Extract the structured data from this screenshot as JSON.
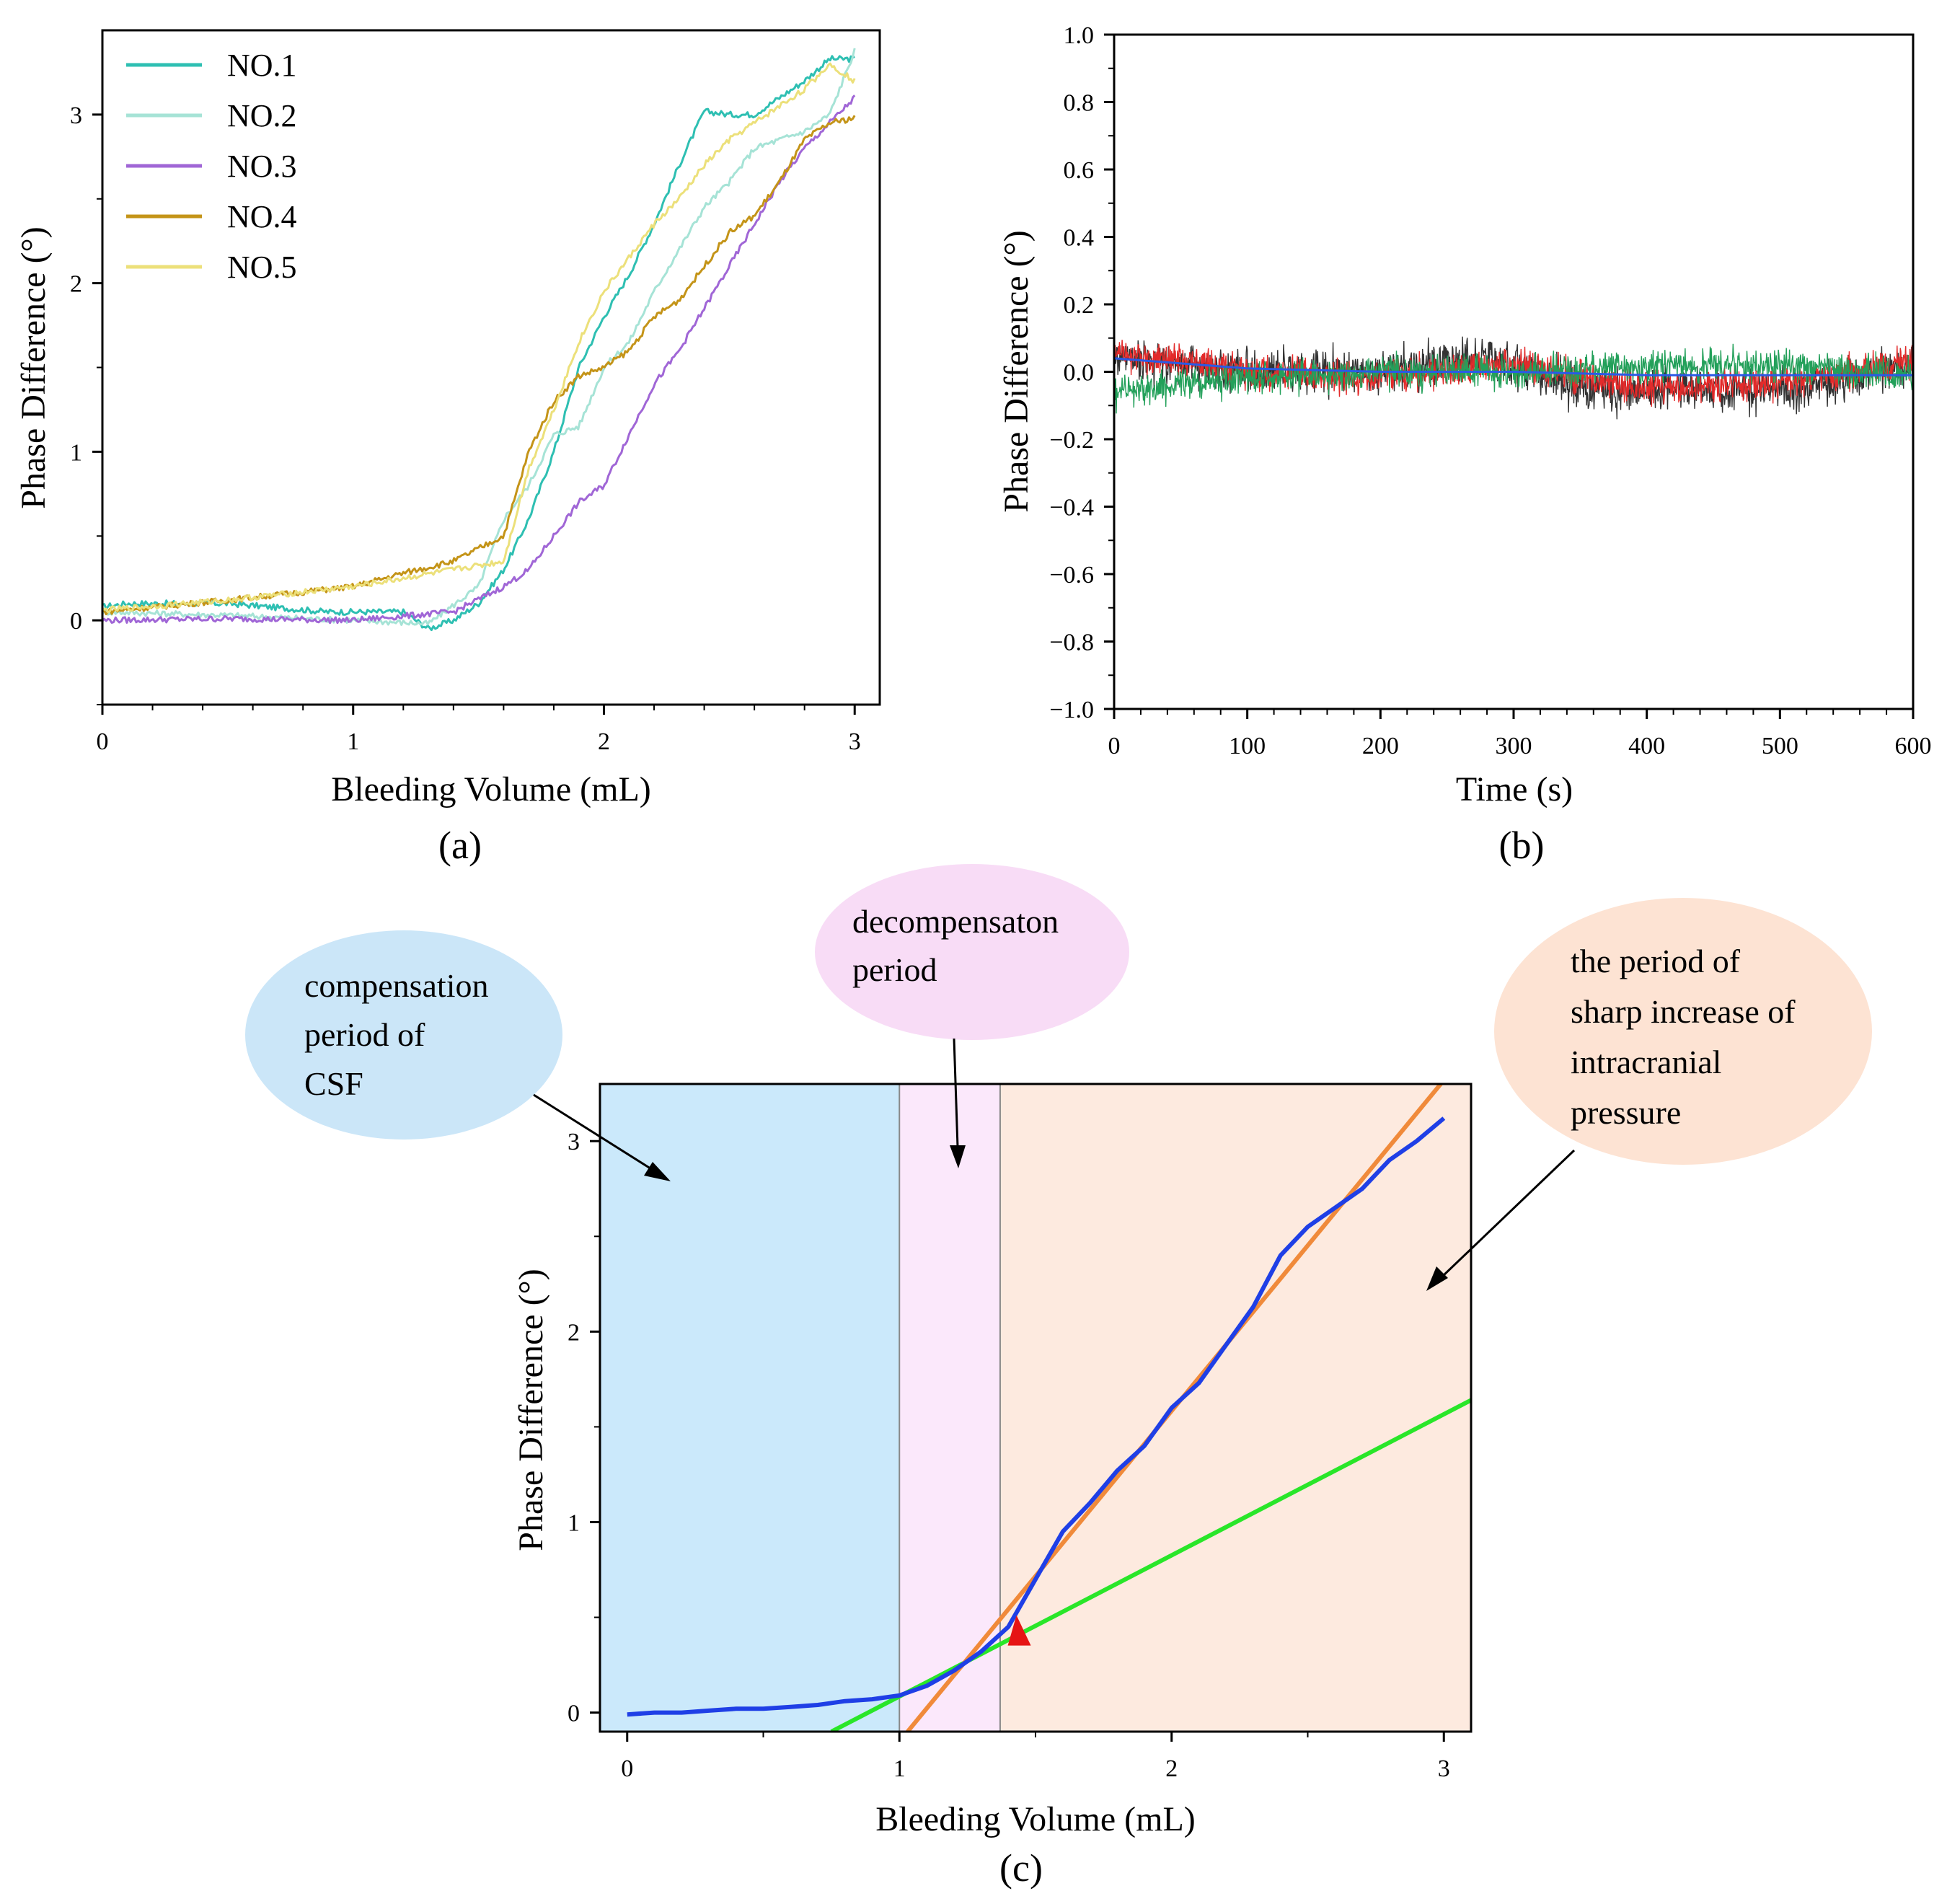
{
  "panels": {
    "a": {
      "label": "(a)"
    },
    "b": {
      "label": "(b)"
    },
    "c": {
      "label": "(c)"
    }
  },
  "colors": {
    "no1": "#2ebfb2",
    "no2": "#a6e3d6",
    "no3": "#a066d6",
    "no4": "#c49418",
    "no5": "#ece07a",
    "b_black": "#333333",
    "b_red": "#e32a2a",
    "b_green": "#23a05a",
    "b_blue": "#2a5ae6",
    "c_curve": "#1f3fe6",
    "c_fit_steep": "#f08a3a",
    "c_fit_shallow": "#29e629",
    "c_marker": "#e61414",
    "region_compensation": "#cbe9fb",
    "region_decompensation": "#fbe8fb",
    "region_sharp": "#fdeadf",
    "bubble_compensation": "#cbe6f8",
    "bubble_decompensation": "#f8dcf6",
    "bubble_sharp": "#fde3d3"
  },
  "chart_data": [
    {
      "id": "a",
      "type": "line",
      "xlabel": "Bleeding Volume (mL)",
      "ylabel": "Phase  Difference (°)",
      "xlim": [
        0,
        3.1
      ],
      "ylim": [
        -0.5,
        3.5
      ],
      "xticks": [
        0,
        1,
        2,
        3
      ],
      "yticks": [
        0,
        1,
        2,
        3
      ],
      "legend_position": "top-left",
      "grid": false,
      "series": [
        {
          "name": "NO.1",
          "color": "#2ebfb2",
          "x": [
            0,
            0.1,
            0.5,
            0.9,
            1.2,
            1.3,
            1.4,
            1.5,
            1.6,
            1.7,
            1.8,
            1.9,
            2.0,
            2.1,
            2.2,
            2.3,
            2.4,
            2.5,
            2.6,
            2.7,
            2.8,
            2.9,
            3.0
          ],
          "y": [
            0.08,
            0.1,
            0.1,
            0.05,
            0.05,
            -0.05,
            0.0,
            0.1,
            0.3,
            0.6,
            1.0,
            1.5,
            1.8,
            2.05,
            2.35,
            2.7,
            3.02,
            3.0,
            3.0,
            3.1,
            3.2,
            3.33,
            3.33
          ]
        },
        {
          "name": "NO.2",
          "color": "#a6e3d6",
          "x": [
            0,
            0.5,
            1.0,
            1.3,
            1.5,
            1.6,
            1.7,
            1.8,
            1.9,
            2.0,
            2.1,
            2.2,
            2.3,
            2.4,
            2.5,
            2.6,
            2.7,
            2.8,
            2.9,
            3.0
          ],
          "y": [
            0.05,
            0.03,
            0.0,
            -0.02,
            0.2,
            0.6,
            0.8,
            1.1,
            1.15,
            1.5,
            1.65,
            1.95,
            2.2,
            2.45,
            2.6,
            2.8,
            2.85,
            2.9,
            3.0,
            3.38
          ]
        },
        {
          "name": "NO.3",
          "color": "#a066d6",
          "x": [
            0,
            0.5,
            1.0,
            1.4,
            1.6,
            1.7,
            1.8,
            1.9,
            2.0,
            2.1,
            2.2,
            2.3,
            2.4,
            2.5,
            2.6,
            2.7,
            2.8,
            2.9,
            3.0
          ],
          "y": [
            0.0,
            0.01,
            0.0,
            0.05,
            0.2,
            0.3,
            0.5,
            0.7,
            0.8,
            1.1,
            1.4,
            1.6,
            1.85,
            2.1,
            2.35,
            2.6,
            2.8,
            2.95,
            3.1
          ]
        },
        {
          "name": "NO.4",
          "color": "#c49418",
          "x": [
            0,
            0.5,
            1.0,
            1.2,
            1.4,
            1.6,
            1.7,
            1.8,
            1.9,
            2.0,
            2.1,
            2.2,
            2.3,
            2.4,
            2.5,
            2.6,
            2.7,
            2.8,
            2.9,
            3.0
          ],
          "y": [
            0.05,
            0.12,
            0.2,
            0.28,
            0.35,
            0.5,
            1.0,
            1.3,
            1.45,
            1.5,
            1.6,
            1.8,
            1.9,
            2.1,
            2.3,
            2.4,
            2.6,
            2.85,
            2.95,
            2.98
          ]
        },
        {
          "name": "NO.5",
          "color": "#ece07a",
          "x": [
            0,
            0.5,
            1.0,
            1.4,
            1.6,
            1.7,
            1.8,
            1.9,
            2.0,
            2.1,
            2.2,
            2.3,
            2.4,
            2.5,
            2.6,
            2.7,
            2.8,
            2.9,
            3.0
          ],
          "y": [
            0.06,
            0.12,
            0.2,
            0.3,
            0.35,
            0.9,
            1.25,
            1.65,
            1.95,
            2.15,
            2.35,
            2.5,
            2.7,
            2.85,
            2.95,
            3.05,
            3.15,
            3.3,
            3.2
          ]
        }
      ]
    },
    {
      "id": "b",
      "type": "line",
      "xlabel": "Time (s)",
      "ylabel": "Phase  Difference (°)",
      "xlim": [
        0,
        600
      ],
      "ylim": [
        -1.0,
        1.0
      ],
      "xticks": [
        0,
        100,
        200,
        300,
        400,
        500,
        600
      ],
      "yticks": [
        -1.0,
        -0.8,
        -0.6,
        -0.4,
        -0.2,
        0.0,
        0.2,
        0.4,
        0.6,
        0.8,
        1.0
      ],
      "ytick_labels": [
        "−1.0",
        "−0.8",
        "−0.6",
        "−0.4",
        "−0.2",
        "0.0",
        "0.2",
        "0.4",
        "0.6",
        "0.8",
        "1.0"
      ],
      "grid": false,
      "series": [
        {
          "color": "#333333",
          "x": [
            0,
            100,
            200,
            280,
            350,
            450,
            520,
            600
          ],
          "y": [
            0.05,
            0.0,
            0.0,
            0.05,
            -0.05,
            -0.05,
            -0.05,
            0.02
          ],
          "noise": 0.06
        },
        {
          "color": "#e32a2a",
          "x": [
            0,
            100,
            200,
            300,
            400,
            500,
            600
          ],
          "y": [
            0.06,
            0.0,
            -0.02,
            0.02,
            -0.05,
            -0.03,
            0.03
          ],
          "noise": 0.045
        },
        {
          "color": "#23a05a",
          "x": [
            0,
            100,
            200,
            300,
            400,
            500,
            600
          ],
          "y": [
            -0.06,
            -0.02,
            0.0,
            0.0,
            0.02,
            0.02,
            -0.01
          ],
          "noise": 0.045
        },
        {
          "color": "#2a5ae6",
          "x": [
            0,
            100,
            200,
            300,
            400,
            500,
            600
          ],
          "y": [
            0.04,
            0.01,
            0.0,
            0.0,
            -0.01,
            -0.01,
            -0.01
          ],
          "noise": 0.0
        }
      ]
    },
    {
      "id": "c",
      "type": "line",
      "xlabel": "Bleeding Volume (mL)",
      "ylabel": "Phase  Difference (°)",
      "xlim": [
        -0.1,
        3.1
      ],
      "ylim": [
        -0.1,
        3.3
      ],
      "xticks": [
        0,
        1,
        2,
        3
      ],
      "yticks": [
        0,
        1,
        2,
        3
      ],
      "grid": false,
      "regions": [
        {
          "name": "compensation",
          "x0": -0.1,
          "x1": 1.0,
          "color": "#cbe9fb"
        },
        {
          "name": "decompensation",
          "x0": 1.0,
          "x1": 1.37,
          "color": "#fbe8fb"
        },
        {
          "name": "sharp-increase",
          "x0": 1.37,
          "x1": 3.1,
          "color": "#fdeadf"
        }
      ],
      "series": [
        {
          "color": "#1f3fe6",
          "x": [
            0,
            0.1,
            0.2,
            0.3,
            0.4,
            0.5,
            0.6,
            0.7,
            0.8,
            0.9,
            1.0,
            1.1,
            1.2,
            1.3,
            1.4,
            1.5,
            1.6,
            1.7,
            1.8,
            1.9,
            2.0,
            2.1,
            2.2,
            2.3,
            2.4,
            2.5,
            2.6,
            2.7,
            2.8,
            2.9,
            3.0
          ],
          "y": [
            -0.01,
            0.0,
            0.0,
            0.01,
            0.02,
            0.02,
            0.03,
            0.04,
            0.06,
            0.07,
            0.09,
            0.14,
            0.22,
            0.32,
            0.45,
            0.7,
            0.95,
            1.1,
            1.27,
            1.4,
            1.6,
            1.73,
            1.93,
            2.13,
            2.4,
            2.55,
            2.65,
            2.75,
            2.9,
            3.0,
            3.12
          ]
        },
        {
          "color": "#f08a3a",
          "x": [
            1.03,
            3.0
          ],
          "y": [
            -0.1,
            3.32
          ]
        },
        {
          "color": "#29e629",
          "x": [
            0.75,
            3.1
          ],
          "y": [
            -0.1,
            1.64
          ]
        }
      ],
      "marker": {
        "x": 1.43,
        "y": 0.42,
        "color": "#e61414"
      },
      "annotations": [
        {
          "id": "compensation",
          "lines": [
            "compensation",
            "period of",
            "CSF"
          ]
        },
        {
          "id": "decompensation",
          "lines": [
            "decompensaton",
            "period"
          ]
        },
        {
          "id": "sharp",
          "lines": [
            "the period of",
            "sharp increase of",
            "intracranial",
            "pressure"
          ]
        }
      ]
    }
  ]
}
